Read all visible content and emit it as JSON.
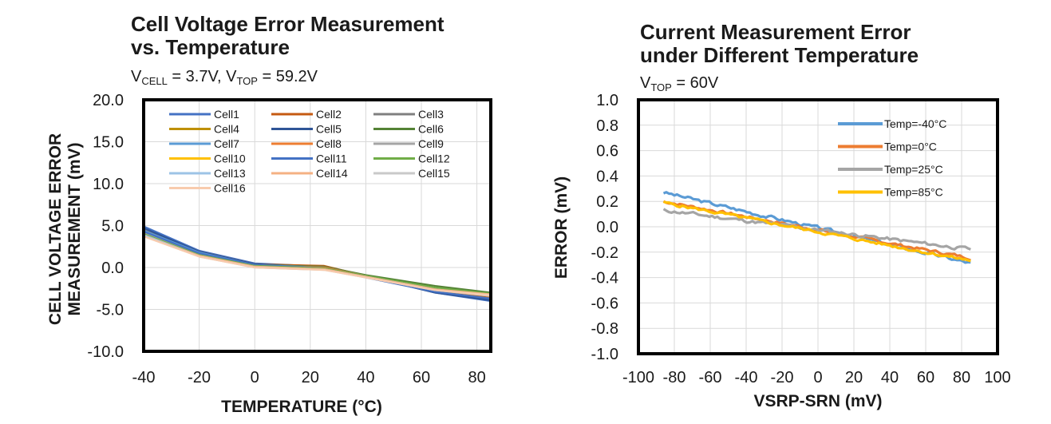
{
  "chart_data": [
    {
      "type": "line",
      "title_line1": "Cell Voltage Error Measurement",
      "title_line2": "vs. Temperature",
      "subtitle": {
        "v1": "V",
        "v1_sub": "CELL",
        "v1_val": " = 3.7V, ",
        "v2": "V",
        "v2_sub": "TOP",
        "v2_val": " = 59.2V"
      },
      "ylabel_line1": "CELL VOLTAGE ERROR",
      "ylabel_line2": "MEASUREMENT (mV)",
      "xlabel": "TEMPERATURE (°C)",
      "xlim": [
        -40,
        85
      ],
      "ylim": [
        -10,
        20
      ],
      "xticks": [
        "-40",
        "-20",
        "0",
        "20",
        "40",
        "60",
        "80"
      ],
      "yticks": [
        "-10.0",
        "-5.0",
        "0.0",
        "5.0",
        "10.0",
        "15.0",
        "20.0"
      ],
      "x": [
        -40,
        -20,
        0,
        25,
        40,
        65,
        85
      ],
      "series": [
        {
          "name": "Cell1",
          "color": "#4472c4",
          "values": [
            4.9,
            2.0,
            0.5,
            0.1,
            -1.0,
            -3.0,
            -4.0
          ]
        },
        {
          "name": "Cell2",
          "color": "#c55a11",
          "values": [
            4.6,
            1.9,
            0.4,
            0.2,
            -1.0,
            -2.8,
            -3.6
          ]
        },
        {
          "name": "Cell3",
          "color": "#7f7f7f",
          "values": [
            4.5,
            1.8,
            0.4,
            0.0,
            -1.1,
            -2.6,
            -3.4
          ]
        },
        {
          "name": "Cell4",
          "color": "#bf9000",
          "values": [
            4.4,
            1.7,
            0.3,
            0.0,
            -1.0,
            -2.7,
            -3.3
          ]
        },
        {
          "name": "Cell5",
          "color": "#2f5597",
          "values": [
            4.7,
            1.9,
            0.4,
            0.0,
            -1.0,
            -3.0,
            -3.9
          ]
        },
        {
          "name": "Cell6",
          "color": "#548235",
          "values": [
            4.3,
            1.7,
            0.3,
            0.1,
            -0.9,
            -2.2,
            -3.0
          ]
        },
        {
          "name": "Cell7",
          "color": "#5b9bd5",
          "values": [
            4.4,
            1.8,
            0.3,
            0.0,
            -1.0,
            -2.5,
            -3.3
          ]
        },
        {
          "name": "Cell8",
          "color": "#ed7d31",
          "values": [
            4.2,
            1.6,
            0.2,
            0.0,
            -1.0,
            -2.6,
            -3.2
          ]
        },
        {
          "name": "Cell9",
          "color": "#a5a5a5",
          "values": [
            4.1,
            1.6,
            0.2,
            -0.1,
            -1.1,
            -2.6,
            -3.3
          ]
        },
        {
          "name": "Cell10",
          "color": "#ffc000",
          "values": [
            4.0,
            1.5,
            0.2,
            -0.1,
            -1.1,
            -2.7,
            -3.4
          ]
        },
        {
          "name": "Cell11",
          "color": "#4472c4",
          "values": [
            4.3,
            1.7,
            0.3,
            -0.1,
            -1.2,
            -2.9,
            -3.7
          ]
        },
        {
          "name": "Cell12",
          "color": "#70ad47",
          "values": [
            4.0,
            1.5,
            0.2,
            -0.1,
            -1.0,
            -2.4,
            -3.1
          ]
        },
        {
          "name": "Cell13",
          "color": "#9dc3e6",
          "values": [
            3.9,
            1.4,
            0.1,
            -0.2,
            -1.1,
            -2.6,
            -3.3
          ]
        },
        {
          "name": "Cell14",
          "color": "#f4b183",
          "values": [
            3.8,
            1.4,
            0.1,
            -0.2,
            -1.1,
            -2.6,
            -3.2
          ]
        },
        {
          "name": "Cell15",
          "color": "#c9c9c9",
          "values": [
            3.8,
            1.3,
            0.0,
            -0.3,
            -1.2,
            -2.7,
            -3.4
          ]
        },
        {
          "name": "Cell16",
          "color": "#f8cbad",
          "values": [
            3.7,
            1.3,
            0.0,
            -0.3,
            -1.2,
            -2.7,
            -3.3
          ]
        }
      ]
    },
    {
      "type": "line",
      "title_line1": "Current Measurement Error",
      "title_line2": "under Different Temperature",
      "subtitle": {
        "v1": "V",
        "v1_sub": "TOP",
        "v1_val": " = 60V"
      },
      "ylabel": "ERROR (mV)",
      "xlabel": "VSRP-SRN (mV)",
      "xlim": [
        -100,
        100
      ],
      "ylim": [
        -1,
        1
      ],
      "xticks": [
        "-100",
        "-80",
        "-60",
        "-40",
        "-20",
        "0",
        "20",
        "40",
        "60",
        "80",
        "100"
      ],
      "yticks": [
        "-1.0",
        "-0.8",
        "-0.6",
        "-0.4",
        "-0.2",
        "0.0",
        "0.2",
        "0.4",
        "0.6",
        "0.8",
        "1.0"
      ],
      "x_range": [
        -86,
        86
      ],
      "series": [
        {
          "name": "Temp=-40°C",
          "color": "#5b9bd5",
          "start": 0.27,
          "end": -0.29,
          "noise": 0.012,
          "seed": 3
        },
        {
          "name": "Temp=0°C",
          "color": "#ed7d31",
          "start": 0.2,
          "end": -0.25,
          "noise": 0.01,
          "seed": 7
        },
        {
          "name": "Temp=25°C",
          "color": "#a5a5a5",
          "start": 0.13,
          "end": -0.18,
          "noise": 0.012,
          "seed": 11
        },
        {
          "name": "Temp=85°C",
          "color": "#ffc000",
          "start": 0.19,
          "end": -0.27,
          "noise": 0.01,
          "seed": 5
        }
      ]
    }
  ]
}
